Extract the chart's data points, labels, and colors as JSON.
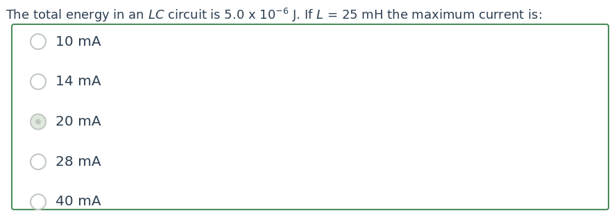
{
  "title_parts": [
    {
      "text": "The total energy in an ",
      "style": "normal"
    },
    {
      "text": "LC",
      "style": "italic"
    },
    {
      "text": " circuit is 5.0 x 10",
      "style": "normal"
    },
    {
      "text": "-6",
      "style": "superscript"
    },
    {
      "text": " J. If ",
      "style": "normal"
    },
    {
      "text": "L",
      "style": "italic"
    },
    {
      "text": " = 25 mH the maximum current is:",
      "style": "normal"
    }
  ],
  "options": [
    "10 mA",
    "14 mA",
    "20 mA",
    "28 mA",
    "40 mA"
  ],
  "correct_index": 2,
  "background_color": "#ffffff",
  "box_border_color": "#4a8c5c",
  "text_color": "#2c3e50",
  "circle_edge_color": "#c0c8c0",
  "circle_face_color": "#ffffff",
  "circle_selected_face": "#e0e8e0",
  "circle_selected_inner": "#c0c8c0",
  "title_fontsize": 13.0,
  "option_fontsize": 14.5,
  "fig_width": 8.82,
  "fig_height": 3.07,
  "dpi": 100
}
